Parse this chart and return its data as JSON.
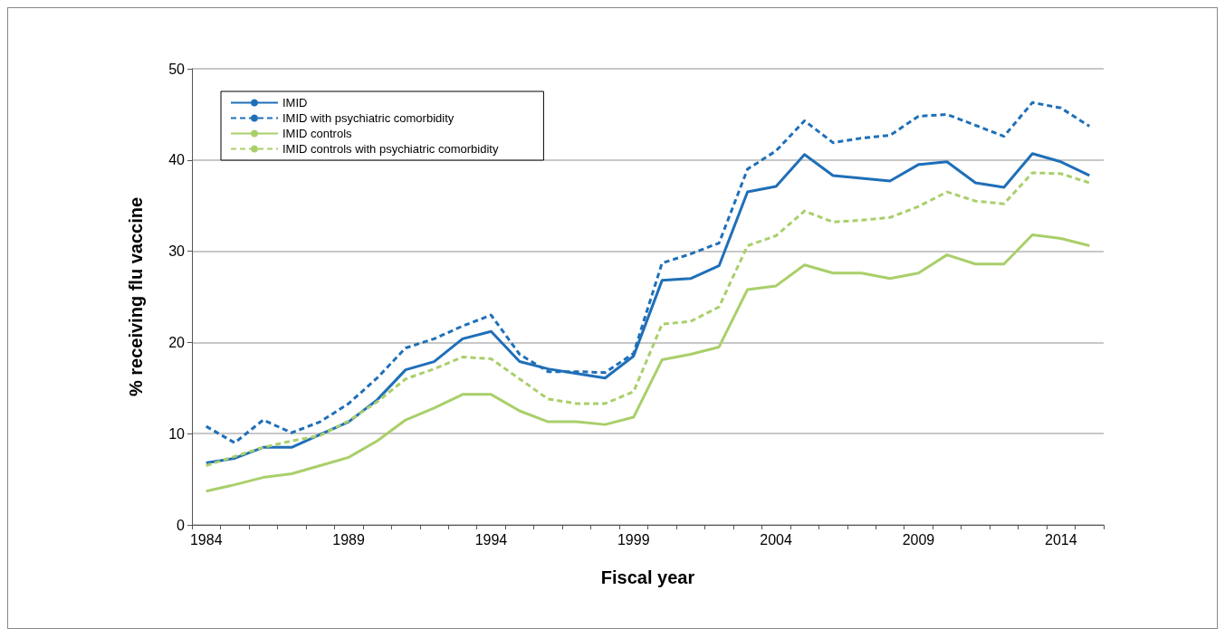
{
  "chart_data": {
    "type": "line",
    "xlabel": "Fiscal year",
    "ylabel": "% receiving flu vaccine",
    "categories": [
      "1984",
      null,
      null,
      null,
      null,
      "1989",
      null,
      null,
      null,
      null,
      "1994",
      null,
      null,
      null,
      null,
      "1999",
      null,
      null,
      null,
      null,
      "2004",
      null,
      null,
      null,
      null,
      "2009",
      null,
      null,
      null,
      null,
      "2014",
      null
    ],
    "series": [
      {
        "name": "IMID",
        "color": "#1f6fb8",
        "line_style": "solid",
        "values": [
          6.8,
          7.3,
          8.5,
          8.5,
          9.9,
          11.3,
          13.7,
          17.0,
          17.9,
          20.4,
          21.2,
          17.9,
          17.1,
          16.6,
          16.1,
          18.5,
          26.8,
          27.0,
          28.4,
          36.5,
          37.1,
          40.6,
          38.3,
          38.0,
          37.7,
          39.5,
          39.8,
          37.5,
          37.0,
          40.7,
          39.8,
          38.3
        ]
      },
      {
        "name": "IMID with psychiatric comorbidity",
        "color": "#1f6fb8",
        "line_style": "dashed",
        "values": [
          10.8,
          9.0,
          11.5,
          10.1,
          11.3,
          13.3,
          16.1,
          19.4,
          20.4,
          21.8,
          23.0,
          18.7,
          16.8,
          16.8,
          16.7,
          18.8,
          28.7,
          29.7,
          30.9,
          39.0,
          41.0,
          44.3,
          41.9,
          42.4,
          42.7,
          44.8,
          45.0,
          43.8,
          42.6,
          46.3,
          45.7,
          43.7
        ]
      },
      {
        "name": "IMID controls",
        "color": "#a9cf6a",
        "line_style": "solid",
        "values": [
          3.7,
          4.4,
          5.2,
          5.6,
          6.5,
          7.4,
          9.2,
          11.5,
          12.8,
          14.3,
          14.3,
          12.5,
          11.3,
          11.3,
          11.0,
          11.8,
          18.1,
          18.7,
          19.5,
          25.8,
          26.2,
          28.5,
          27.6,
          27.6,
          27.0,
          27.6,
          29.6,
          28.6,
          28.6,
          31.8,
          31.4,
          30.6
        ]
      },
      {
        "name": "IMID controls with psychiatric comorbidity",
        "color": "#a9cf6a",
        "line_style": "dashed",
        "values": [
          6.5,
          7.5,
          8.5,
          9.2,
          9.8,
          11.4,
          13.5,
          16.0,
          17.1,
          18.4,
          18.2,
          16.0,
          13.8,
          13.3,
          13.3,
          14.6,
          22.0,
          22.3,
          23.9,
          30.6,
          31.7,
          34.4,
          33.2,
          33.4,
          33.7,
          34.9,
          36.5,
          35.5,
          35.2,
          38.6,
          38.5,
          37.5
        ]
      }
    ],
    "ylim": [
      0,
      50
    ],
    "yticks": [
      0,
      10,
      20,
      30,
      40,
      50
    ],
    "grid": "y",
    "legend": "top left",
    "marker": "none"
  }
}
